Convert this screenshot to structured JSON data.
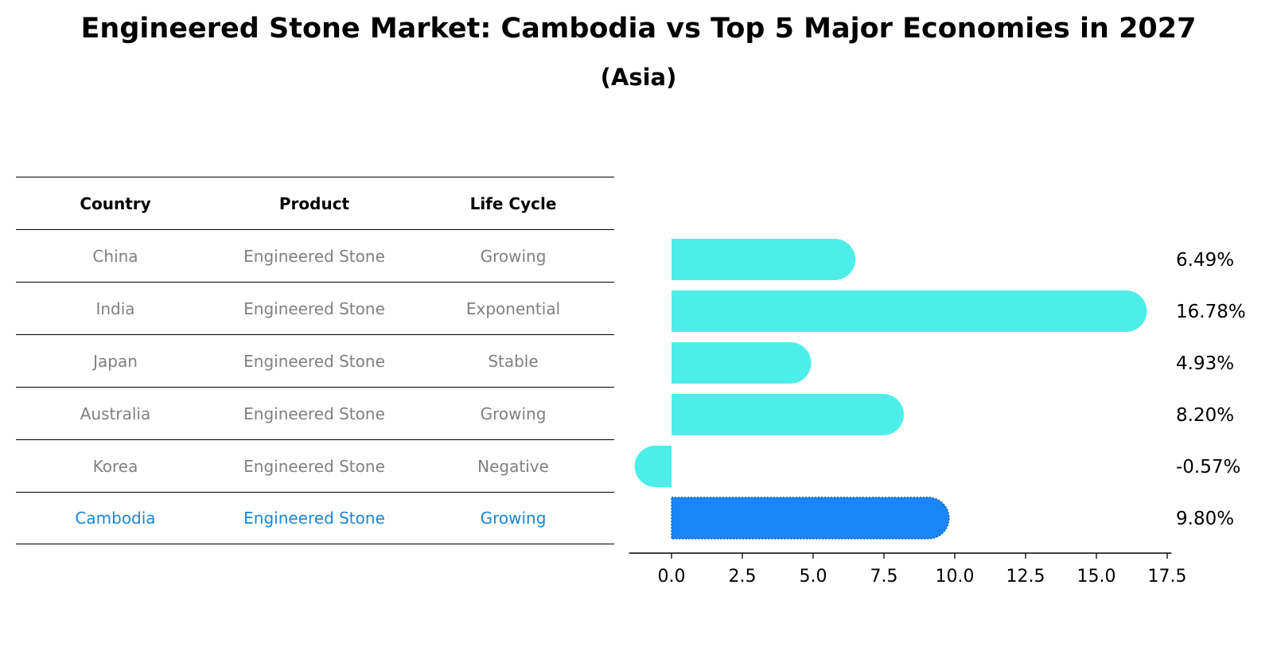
{
  "title": "Engineered Stone Market: Cambodia vs Top 5 Major Economies in 2027",
  "subtitle": "(Asia)",
  "colors": {
    "bar": "#4deeea",
    "highlight_bar": "#1a86f5",
    "highlight_text": "#1a86d6",
    "muted_text": "#808080"
  },
  "table": {
    "headers": [
      "Country",
      "Product",
      "Life Cycle"
    ],
    "rows": [
      [
        "China",
        "Engineered Stone",
        "Growing"
      ],
      [
        "India",
        "Engineered Stone",
        "Exponential"
      ],
      [
        "Japan",
        "Engineered Stone",
        "Stable"
      ],
      [
        "Australia",
        "Engineered Stone",
        "Growing"
      ],
      [
        "Korea",
        "Engineered Stone",
        "Negative"
      ],
      [
        "Cambodia",
        "Engineered Stone",
        "Growing"
      ]
    ],
    "highlight_row": 5
  },
  "chart_data": {
    "type": "bar",
    "orientation": "horizontal",
    "categories": [
      "China",
      "India",
      "Japan",
      "Australia",
      "Korea",
      "Cambodia"
    ],
    "values": [
      6.49,
      16.78,
      4.93,
      8.2,
      -0.57,
      9.8
    ],
    "value_labels": [
      "6.49%",
      "16.78%",
      "4.93%",
      "8.20%",
      "-0.57%",
      "9.80%"
    ],
    "highlight_index": 5,
    "xticks": [
      "0.0",
      "2.5",
      "5.0",
      "7.5",
      "10.0",
      "12.5",
      "15.0",
      "17.5"
    ],
    "xlim": [
      -1.5,
      17.65
    ],
    "grid": false
  }
}
